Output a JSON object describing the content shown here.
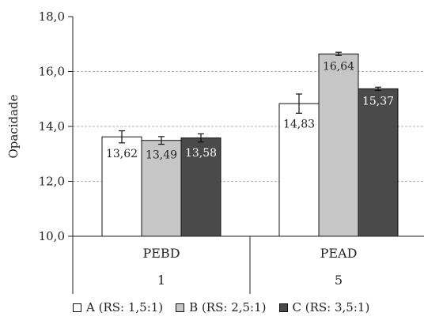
{
  "chart_data": {
    "type": "bar",
    "ylabel": "Opacidade",
    "ylim": [
      10,
      18
    ],
    "yticks": [
      "10,0",
      "12,0",
      "14,0",
      "16,0",
      "18,0"
    ],
    "grid": true,
    "legend_position": "bottom",
    "groups": [
      {
        "category": "PEBD",
        "sub": "1"
      },
      {
        "category": "PEAD",
        "sub": "5"
      }
    ],
    "series": [
      {
        "name": "A (RS: 1,5:1)",
        "color": "#ffffff",
        "label_color": "#222222",
        "values": [
          13.62,
          14.83
        ],
        "labels": [
          "13,62",
          "14,83"
        ],
        "errors": [
          0.22,
          0.35
        ]
      },
      {
        "name": "B (RS: 2,5:1)",
        "color": "#c6c6c6",
        "label_color": "#222222",
        "values": [
          13.49,
          16.64
        ],
        "labels": [
          "13,49",
          "16,64"
        ],
        "errors": [
          0.14,
          0.06
        ]
      },
      {
        "name": "C (RS: 3,5:1)",
        "color": "#4a4a4a",
        "label_color": "#ffffff",
        "values": [
          13.58,
          15.37
        ],
        "labels": [
          "13,58",
          "15,37"
        ],
        "errors": [
          0.15,
          0.06
        ]
      }
    ]
  }
}
